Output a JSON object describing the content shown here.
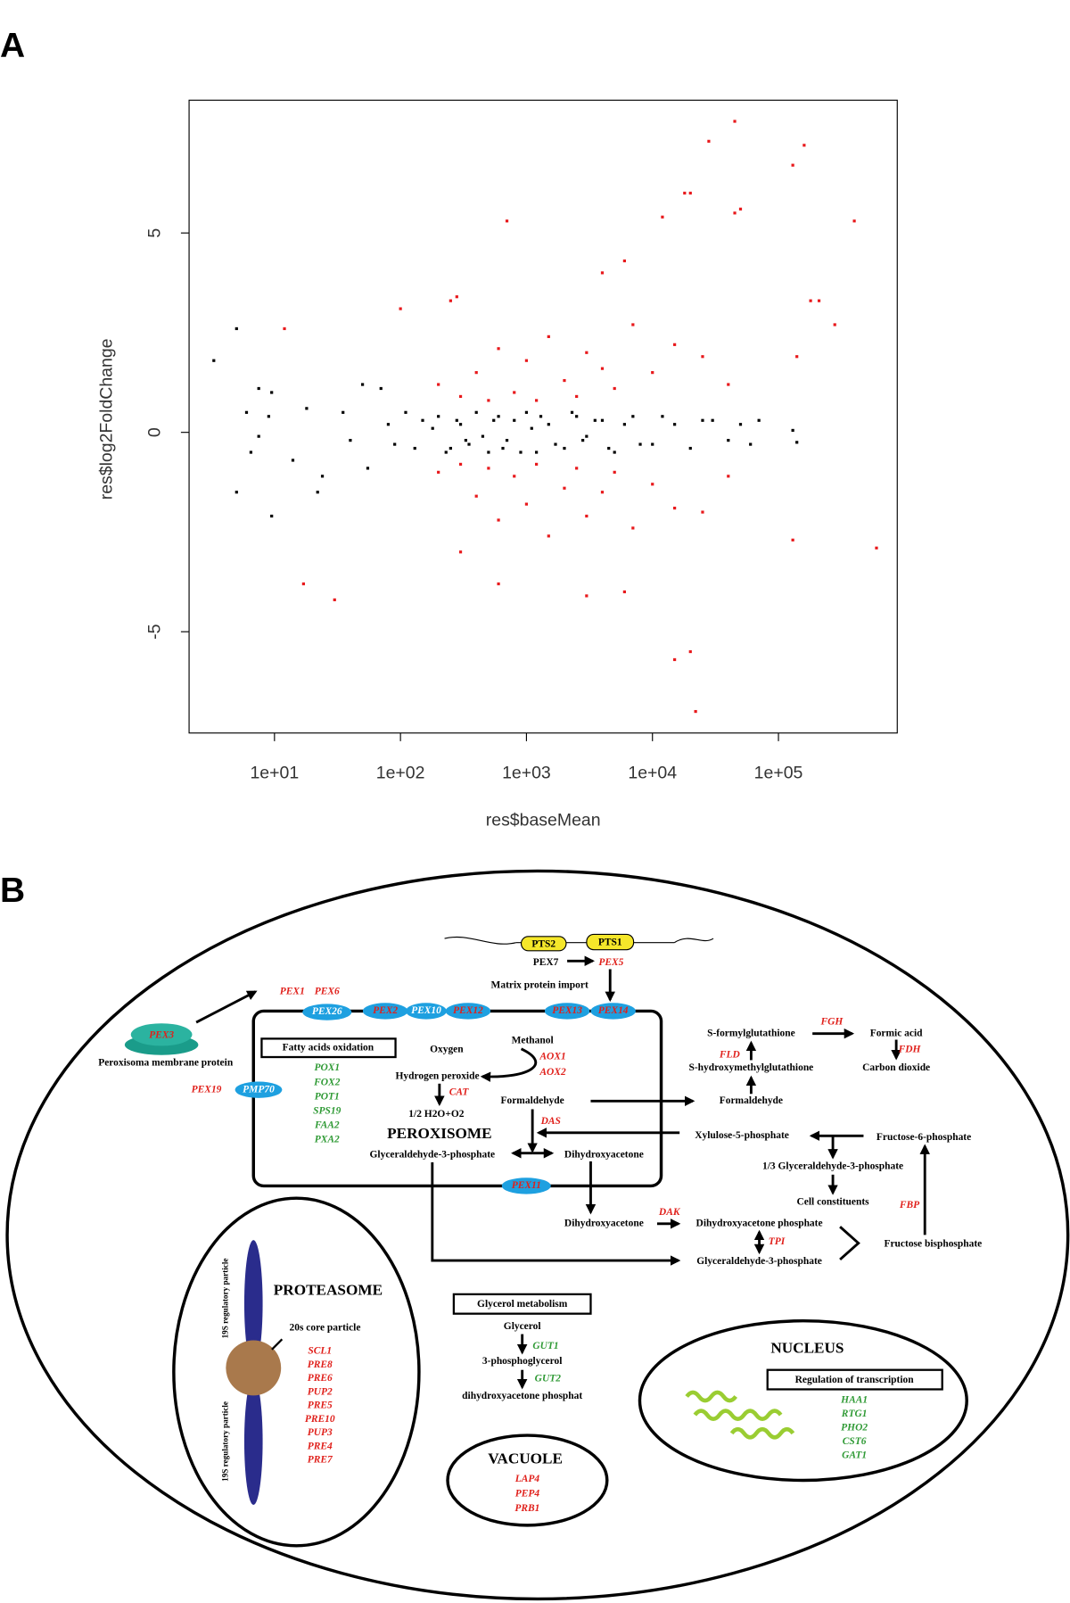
{
  "panel_a": {
    "label": "A"
  },
  "chart_data": {
    "type": "scatter",
    "xlabel": "res$baseMean",
    "ylabel": "res$log2FoldChange",
    "xscale": "log",
    "xlim": [
      2.1,
      877000
    ],
    "ylim": [
      -7.54,
      8.33
    ],
    "xticks": [
      {
        "value": 10,
        "label": "1e+01"
      },
      {
        "value": 100,
        "label": "1e+02"
      },
      {
        "value": 1000,
        "label": "1e+03"
      },
      {
        "value": 10000,
        "label": "1e+04"
      },
      {
        "value": 100000,
        "label": "1e+05"
      }
    ],
    "yticks": [
      -5,
      0,
      5
    ],
    "series": [
      {
        "color": "#000000",
        "x": [
          3.3,
          5,
          5,
          6,
          6.5,
          7.5,
          7.5,
          9,
          9.5,
          9.5,
          14,
          18,
          22,
          24,
          35,
          40,
          50,
          55,
          70,
          80,
          90,
          110,
          130,
          150,
          180,
          200,
          230,
          250,
          280,
          300,
          330,
          350,
          400,
          450,
          500,
          550,
          600,
          650,
          700,
          800,
          900,
          1000,
          1100,
          1200,
          1300,
          1500,
          1700,
          2000,
          2300,
          2500,
          2800,
          3000,
          3500,
          4000,
          4500,
          5000,
          6000,
          7000,
          8000,
          10000,
          12000,
          15000,
          20000,
          25000,
          30000,
          40000,
          50000,
          60000,
          70000,
          130000,
          140000
        ],
        "values": [
          1.8,
          2.6,
          -1.5,
          0.5,
          -0.5,
          1.1,
          -0.1,
          0.4,
          1.0,
          -2.1,
          -0.7,
          0.6,
          -1.5,
          -1.1,
          0.5,
          -0.2,
          1.2,
          -0.9,
          1.1,
          0.2,
          -0.3,
          0.5,
          -0.4,
          0.3,
          0.1,
          0.4,
          -0.5,
          -0.4,
          0.3,
          0.2,
          -0.2,
          -0.3,
          0.5,
          -0.1,
          -0.5,
          0.3,
          0.4,
          -0.4,
          -0.2,
          0.3,
          -0.5,
          0.5,
          0.1,
          -0.5,
          0.4,
          0.2,
          -0.3,
          -0.4,
          0.5,
          0.4,
          -0.2,
          -0.1,
          0.3,
          0.3,
          -0.4,
          -0.5,
          0.2,
          0.4,
          -0.3,
          -0.3,
          0.4,
          0.2,
          -0.4,
          0.3,
          0.3,
          -0.2,
          0.2,
          -0.3,
          0.3,
          0.05,
          -0.25
        ]
      },
      {
        "color": "#e8191c",
        "x": [
          12,
          17,
          30,
          100,
          250,
          280,
          300,
          600,
          700,
          3000,
          4000,
          6000,
          6000,
          12000,
          15000,
          18000,
          20000,
          20000,
          22000,
          28000,
          45000,
          45000,
          50000,
          130000,
          130000,
          140000,
          160000,
          180000,
          210000,
          280000,
          400000,
          600000,
          200,
          300,
          400,
          500,
          600,
          800,
          1000,
          1200,
          1500,
          2000,
          2500,
          3000,
          4000,
          5000,
          7000,
          10000,
          15000,
          25000,
          40000,
          200,
          300,
          400,
          500,
          600,
          800,
          1000,
          1200,
          1500,
          2000,
          2500,
          3000,
          4000,
          5000,
          7000,
          10000,
          15000,
          25000,
          40000
        ],
        "values": [
          2.6,
          -3.8,
          -4.2,
          3.1,
          3.3,
          3.4,
          -3.0,
          -3.8,
          5.3,
          -4.1,
          4.0,
          4.3,
          -4.0,
          5.4,
          -5.7,
          6.0,
          6.0,
          -5.5,
          -7.0,
          7.3,
          7.8,
          5.5,
          5.6,
          6.7,
          -2.7,
          1.9,
          7.2,
          3.3,
          3.3,
          2.7,
          5.3,
          -2.9,
          1.2,
          0.9,
          1.5,
          0.8,
          2.1,
          1.0,
          1.8,
          0.8,
          2.4,
          1.3,
          0.9,
          2.0,
          1.6,
          1.1,
          2.7,
          1.5,
          2.2,
          1.9,
          1.2,
          -1.0,
          -0.8,
          -1.6,
          -0.9,
          -2.2,
          -1.1,
          -1.8,
          -0.8,
          -2.6,
          -1.4,
          -0.9,
          -2.1,
          -1.5,
          -1.0,
          -2.4,
          -1.3,
          -1.9,
          -2.0,
          -1.1
        ]
      }
    ]
  },
  "panel_b": {
    "label": "B",
    "import": {
      "pts2": "PTS2",
      "pts1": "PTS1",
      "pex7": "PEX7",
      "pex5": "PEX5",
      "title": "Matrix protein import"
    },
    "membrane": {
      "pex1": "PEX1",
      "pex6": "PEX6",
      "pex26": "PEX26",
      "pex2": "PEX2",
      "pex10": "PEX10",
      "pex12": "PEX12",
      "pex13": "PEX13",
      "pex14": "PEX14",
      "pex11": "PEX11",
      "pmp70": "PMP70",
      "pex3": "PEX3",
      "pex19": "PEX19",
      "protein": "Peroxisoma membrane protein"
    },
    "fatty_acids": {
      "title": "Fatty acids oxidation",
      "genes": [
        "POX1",
        "FOX2",
        "POT1",
        "SPS19",
        "FAA2",
        "PXA2"
      ]
    },
    "peroxisome": {
      "title": "PEROXISOME",
      "oxygen": "Oxygen",
      "h2o2": "Hydrogen peroxide",
      "cat": "CAT",
      "water": "1/2 H2O+O2",
      "methanol": "Methanol",
      "aox1": "AOX1",
      "aox2": "AOX2",
      "formaldehyde": "Formaldehyde",
      "das": "DAS",
      "gap": "Glyceraldehyde-3-phosphate",
      "dha": "Dihydroxyacetone"
    },
    "cytosol": {
      "formaldehyde": "Formaldehyde",
      "fld": "FLD",
      "shmg": "S-hydroxymethylglutathione",
      "sfg": "S-formylglutathione",
      "fgh": "FGH",
      "formic": "Formic acid",
      "fdh": "FDH",
      "co2": "Carbon dioxide",
      "xu5p": "Xylulose-5-phosphate",
      "f6p": "Fructose-6-phosphate",
      "gap13": "1/3 Glyceraldehyde-3-phosphate",
      "cells": "Cell constituents",
      "fbp": "FBP",
      "fbisp": "Fructose bisphosphate",
      "dha": "Dihydroxyacetone",
      "dak": "DAK",
      "dhap": "Dihydroxyacetone phosphate",
      "tpi": "TPI",
      "gap": "Glyceraldehyde-3-phosphate"
    },
    "proteasome": {
      "title": "PROTEASOME",
      "core": "20s core particle",
      "regulatory_top": "19S regulatory particle",
      "regulatory_bottom": "19S regulatory particle",
      "genes": [
        "SCL1",
        "PRE8",
        "PRE6",
        "PUP2",
        "PRE5",
        "PRE10",
        "PUP3",
        "PRE4",
        "PRE7"
      ]
    },
    "glycerol": {
      "title": "Glycerol metabolism",
      "glycerol": "Glycerol",
      "gut1": "GUT1",
      "pgl": "3-phosphoglycerol",
      "gut2": "GUT2",
      "dhap": "dihydroxyacetone phosphat"
    },
    "vacuole": {
      "title": "VACUOLE",
      "genes": [
        "LAP4",
        "PEP4",
        "PRB1"
      ]
    },
    "nucleus": {
      "title": "NUCLEUS",
      "regulation": "Regulation of transcription",
      "genes": [
        "HAA1",
        "RTG1",
        "PHO2",
        "CST6",
        "GAT1"
      ]
    }
  }
}
